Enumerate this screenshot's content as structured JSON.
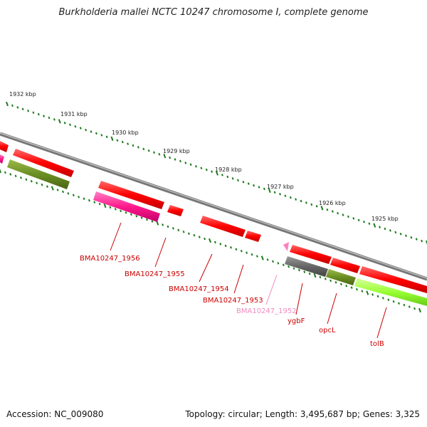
{
  "title": "Burkholderia mallei NCTC 10247 chromosome I, complete genome",
  "footer": {
    "accession": "Accession: NC_009080",
    "summary": "Topology: circular; Length: 3,495,687 bp; Genes: 3,325"
  },
  "ruler": {
    "ticks": [
      "1932 kbp",
      "1931 kbp",
      "1930 kbp",
      "1929 kbp",
      "1928 kbp",
      "1927 kbp",
      "1926 kbp",
      "1925 kbp"
    ]
  },
  "genes": [
    {
      "label": "BMA10247_1956",
      "color": "#cc0000"
    },
    {
      "label": "BMA10247_1955",
      "color": "#cc0000"
    },
    {
      "label": "BMA10247_1954",
      "color": "#cc0000"
    },
    {
      "label": "BMA10247_1953",
      "color": "#cc0000"
    },
    {
      "label": "BMA10247_1952",
      "color": "#f08cc0"
    },
    {
      "label": "ygbF",
      "color": "#cc0000"
    },
    {
      "label": "opcL",
      "color": "#cc0000"
    },
    {
      "label": "tolB",
      "color": "#cc0000"
    }
  ],
  "feature_colors": {
    "cds": "#ff0000",
    "gene": "#ff1a8c",
    "green": "#6b8e23",
    "lime": "#99ff33",
    "gray": "#666666",
    "pink": "#ff80c0"
  }
}
